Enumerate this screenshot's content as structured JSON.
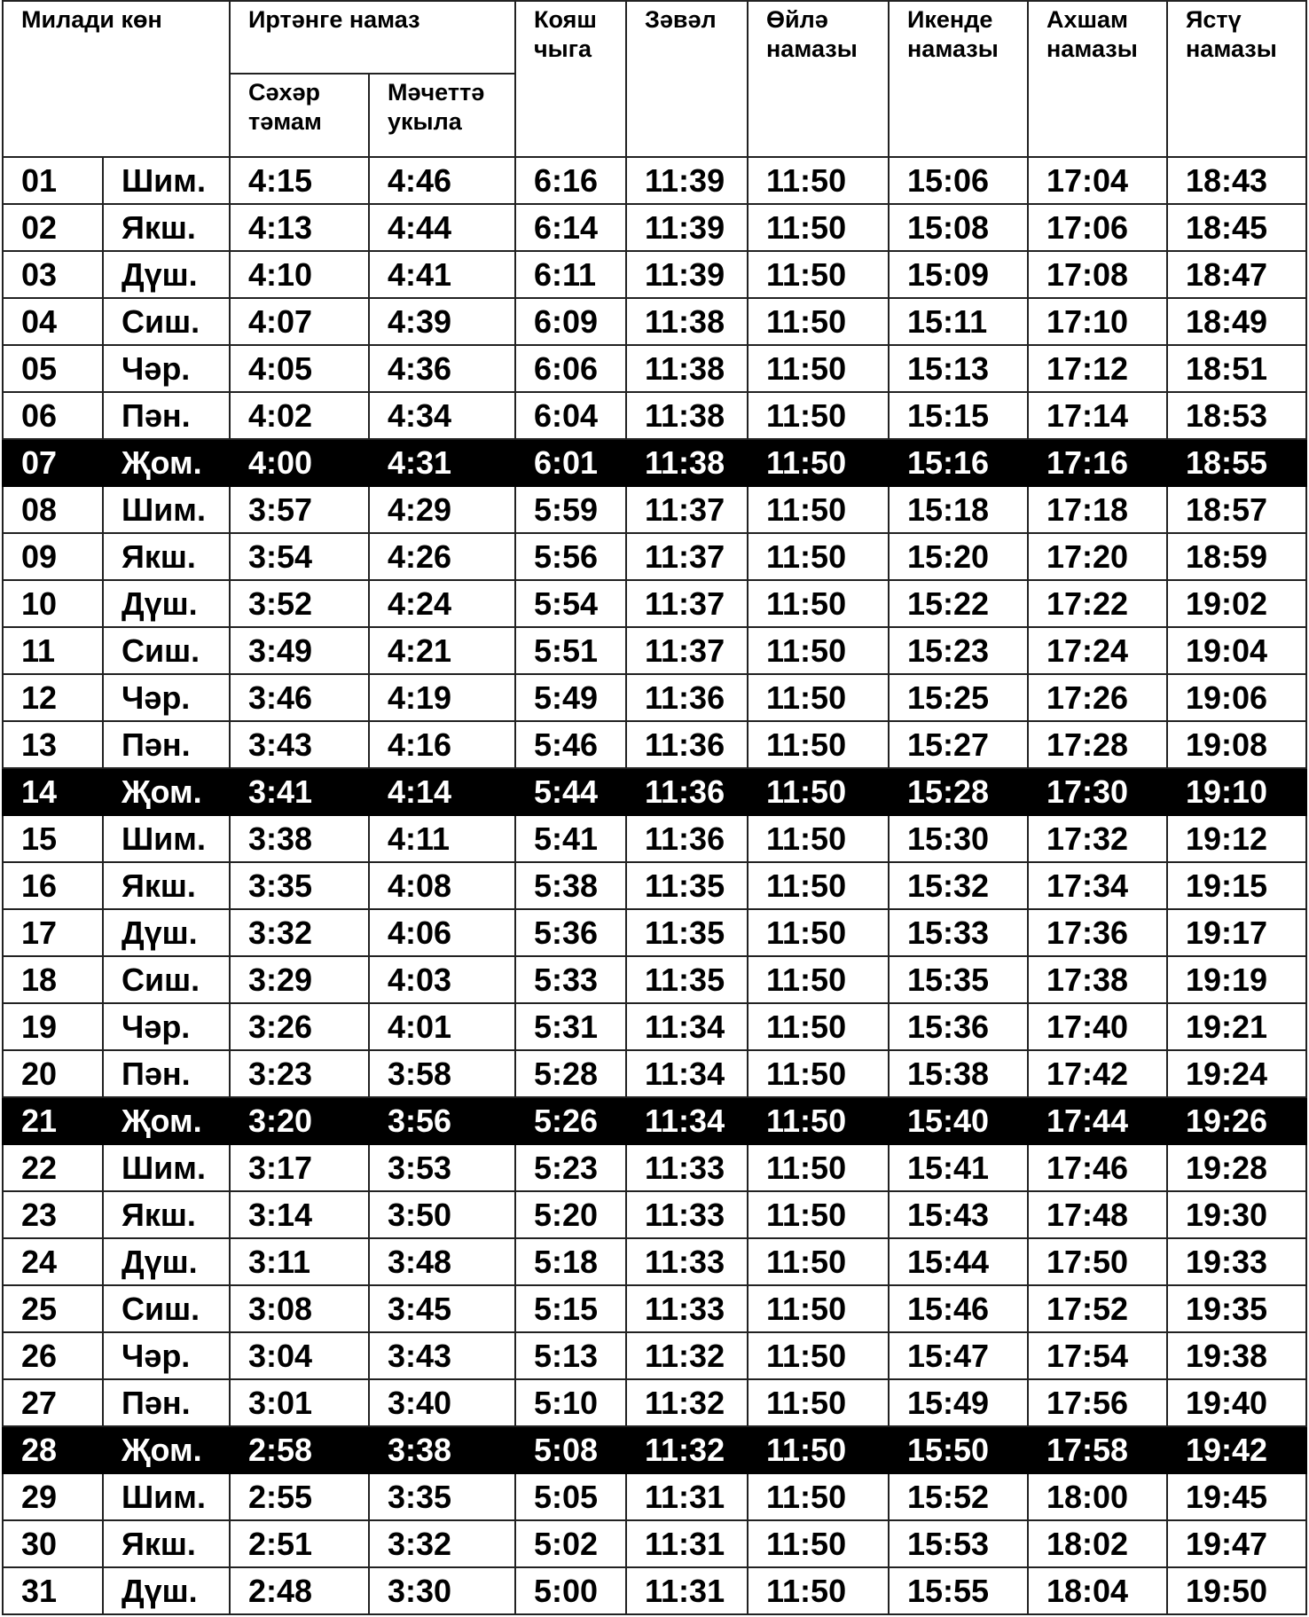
{
  "header": {
    "date": "Милади көн",
    "fajr": "Иртәнге намаз",
    "suhur": "Сәхәр тәмам",
    "mosque": "Мәчеттә укыла",
    "sunrise": "Кояш чыга",
    "zawal": "Зәвәл",
    "dhuhr": "Өйлә намазы",
    "asr": "Икенде намазы",
    "maghrib": "Ахшам намазы",
    "isha": "Ястү намазы"
  },
  "highlight_color": "#000000",
  "rows": [
    [
      "01",
      "Шим.",
      "4:15",
      "4:46",
      "6:16",
      "11:39",
      "11:50",
      "15:06",
      "17:04",
      "18:43"
    ],
    [
      "02",
      "Якш.",
      "4:13",
      "4:44",
      "6:14",
      "11:39",
      "11:50",
      "15:08",
      "17:06",
      "18:45"
    ],
    [
      "03",
      "Дүш.",
      "4:10",
      "4:41",
      "6:11",
      "11:39",
      "11:50",
      "15:09",
      "17:08",
      "18:47"
    ],
    [
      "04",
      "Сиш.",
      "4:07",
      "4:39",
      "6:09",
      "11:38",
      "11:50",
      "15:11",
      "17:10",
      "18:49"
    ],
    [
      "05",
      "Чәр.",
      "4:05",
      "4:36",
      "6:06",
      "11:38",
      "11:50",
      "15:13",
      "17:12",
      "18:51"
    ],
    [
      "06",
      "Пән.",
      "4:02",
      "4:34",
      "6:04",
      "11:38",
      "11:50",
      "15:15",
      "17:14",
      "18:53"
    ],
    [
      "07",
      "Җом.",
      "4:00",
      "4:31",
      "6:01",
      "11:38",
      "11:50",
      "15:16",
      "17:16",
      "18:55"
    ],
    [
      "08",
      "Шим.",
      "3:57",
      "4:29",
      "5:59",
      "11:37",
      "11:50",
      "15:18",
      "17:18",
      "18:57"
    ],
    [
      "09",
      "Якш.",
      "3:54",
      "4:26",
      "5:56",
      "11:37",
      "11:50",
      "15:20",
      "17:20",
      "18:59"
    ],
    [
      "10",
      "Дүш.",
      "3:52",
      "4:24",
      "5:54",
      "11:37",
      "11:50",
      "15:22",
      "17:22",
      "19:02"
    ],
    [
      "11",
      "Сиш.",
      "3:49",
      "4:21",
      "5:51",
      "11:37",
      "11:50",
      "15:23",
      "17:24",
      "19:04"
    ],
    [
      "12",
      "Чәр.",
      "3:46",
      "4:19",
      "5:49",
      "11:36",
      "11:50",
      "15:25",
      "17:26",
      "19:06"
    ],
    [
      "13",
      "Пән.",
      "3:43",
      "4:16",
      "5:46",
      "11:36",
      "11:50",
      "15:27",
      "17:28",
      "19:08"
    ],
    [
      "14",
      "Җом.",
      "3:41",
      "4:14",
      "5:44",
      "11:36",
      "11:50",
      "15:28",
      "17:30",
      "19:10"
    ],
    [
      "15",
      "Шим.",
      "3:38",
      "4:11",
      "5:41",
      "11:36",
      "11:50",
      "15:30",
      "17:32",
      "19:12"
    ],
    [
      "16",
      "Якш.",
      "3:35",
      "4:08",
      "5:38",
      "11:35",
      "11:50",
      "15:32",
      "17:34",
      "19:15"
    ],
    [
      "17",
      "Дүш.",
      "3:32",
      "4:06",
      "5:36",
      "11:35",
      "11:50",
      "15:33",
      "17:36",
      "19:17"
    ],
    [
      "18",
      "Сиш.",
      "3:29",
      "4:03",
      "5:33",
      "11:35",
      "11:50",
      "15:35",
      "17:38",
      "19:19"
    ],
    [
      "19",
      "Чәр.",
      "3:26",
      "4:01",
      "5:31",
      "11:34",
      "11:50",
      "15:36",
      "17:40",
      "19:21"
    ],
    [
      "20",
      "Пән.",
      "3:23",
      "3:58",
      "5:28",
      "11:34",
      "11:50",
      "15:38",
      "17:42",
      "19:24"
    ],
    [
      "21",
      "Җом.",
      "3:20",
      "3:56",
      "5:26",
      "11:34",
      "11:50",
      "15:40",
      "17:44",
      "19:26"
    ],
    [
      "22",
      "Шим.",
      "3:17",
      "3:53",
      "5:23",
      "11:33",
      "11:50",
      "15:41",
      "17:46",
      "19:28"
    ],
    [
      "23",
      "Якш.",
      "3:14",
      "3:50",
      "5:20",
      "11:33",
      "11:50",
      "15:43",
      "17:48",
      "19:30"
    ],
    [
      "24",
      "Дүш.",
      "3:11",
      "3:48",
      "5:18",
      "11:33",
      "11:50",
      "15:44",
      "17:50",
      "19:33"
    ],
    [
      "25",
      "Сиш.",
      "3:08",
      "3:45",
      "5:15",
      "11:33",
      "11:50",
      "15:46",
      "17:52",
      "19:35"
    ],
    [
      "26",
      "Чәр.",
      "3:04",
      "3:43",
      "5:13",
      "11:32",
      "11:50",
      "15:47",
      "17:54",
      "19:38"
    ],
    [
      "27",
      "Пән.",
      "3:01",
      "3:40",
      "5:10",
      "11:32",
      "11:50",
      "15:49",
      "17:56",
      "19:40"
    ],
    [
      "28",
      "Җом.",
      "2:58",
      "3:38",
      "5:08",
      "11:32",
      "11:50",
      "15:50",
      "17:58",
      "19:42"
    ],
    [
      "29",
      "Шим.",
      "2:55",
      "3:35",
      "5:05",
      "11:31",
      "11:50",
      "15:52",
      "18:00",
      "19:45"
    ],
    [
      "30",
      "Якш.",
      "2:51",
      "3:32",
      "5:02",
      "11:31",
      "11:50",
      "15:53",
      "18:02",
      "19:47"
    ],
    [
      "31",
      "Дүш.",
      "2:48",
      "3:30",
      "5:00",
      "11:31",
      "11:50",
      "15:55",
      "18:04",
      "19:50"
    ]
  ]
}
